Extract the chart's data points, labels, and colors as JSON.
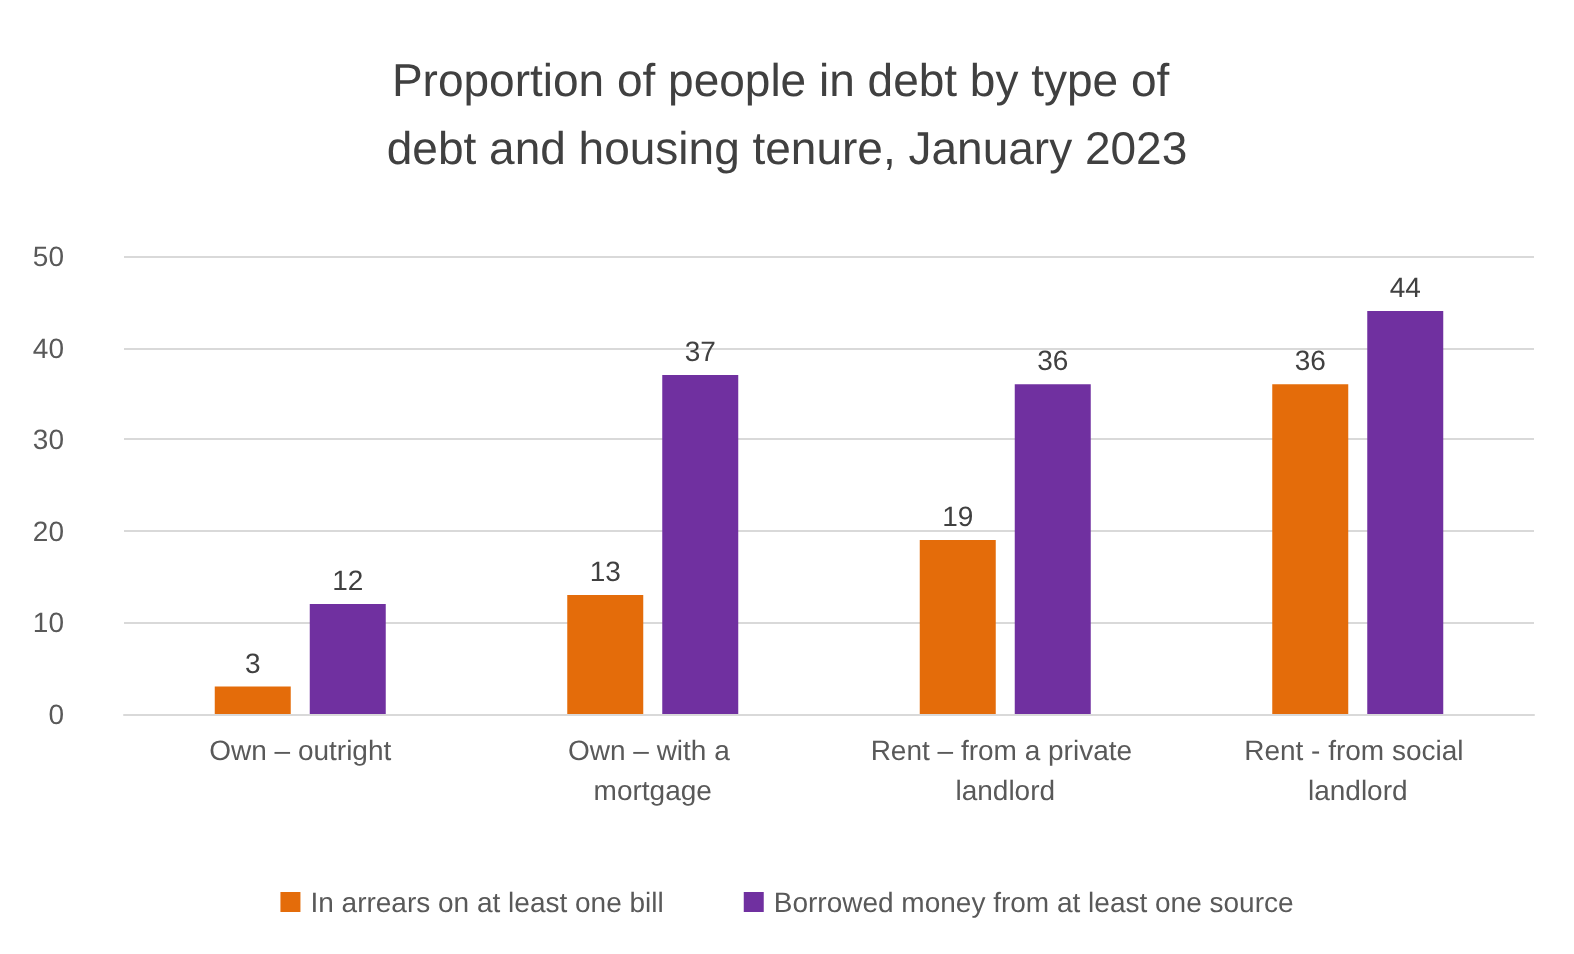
{
  "chart_data": {
    "type": "bar",
    "title": "Proportion of people in debt by type of debt and housing tenure, January 2023",
    "categories": [
      "Own – outright",
      "Own – with a mortgage",
      "Rent – from a private landlord",
      "Rent - from social landlord"
    ],
    "series": [
      {
        "name": "In arrears on at least one bill",
        "color": "#e46c0a",
        "values": [
          3,
          13,
          19,
          36
        ]
      },
      {
        "name": "Borrowed money from at least one source",
        "color": "#7030a0",
        "values": [
          12,
          37,
          36,
          44
        ]
      }
    ],
    "ylim": [
      0,
      50
    ],
    "yticks": [
      0,
      10,
      20,
      30,
      40,
      50
    ],
    "grid": "y",
    "legend": "bottom",
    "data_labels": true
  }
}
